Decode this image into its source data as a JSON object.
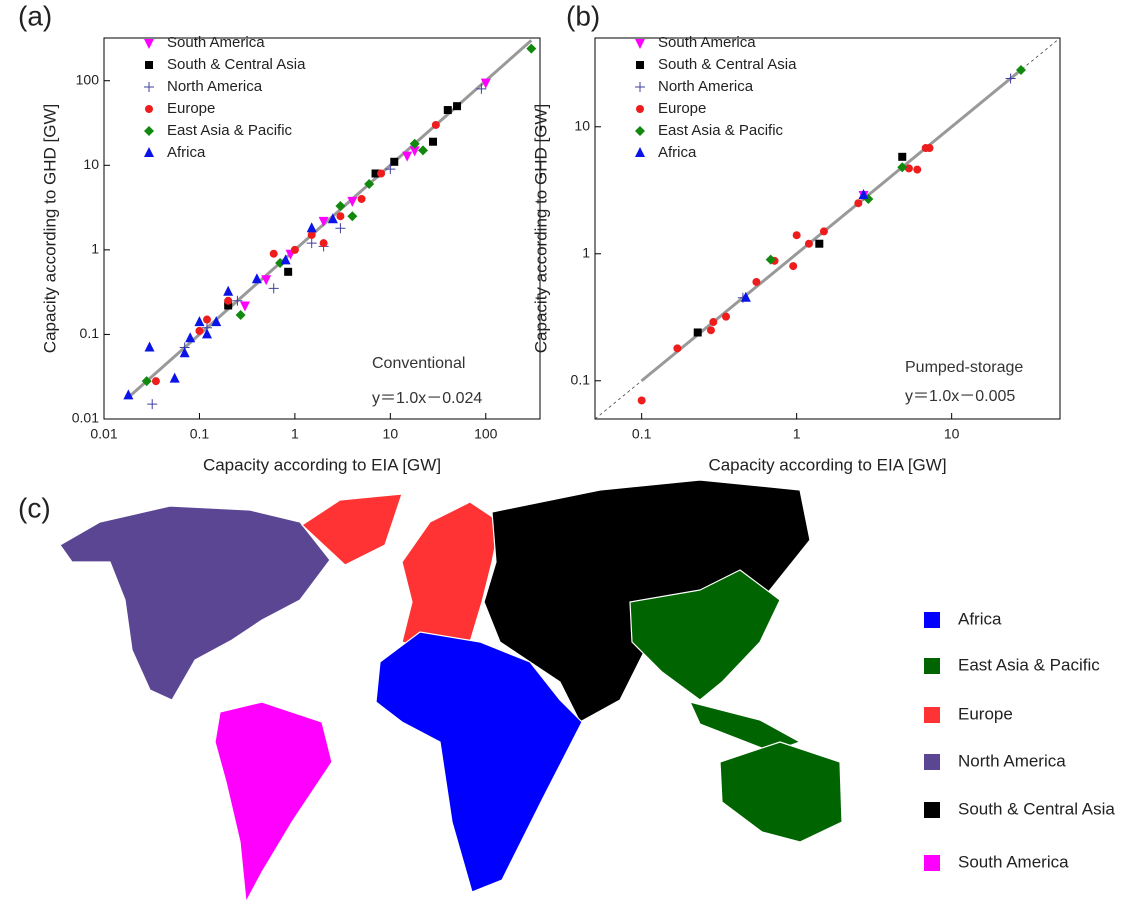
{
  "chart_data": [
    {
      "type": "scatter",
      "label": "(a)",
      "x_label": "Capacity according to EIA [GW]",
      "y_label": "Capacity according to GHD [GW]",
      "annotations": [
        "Conventional",
        "y＝1.0x－0.024"
      ],
      "log_x": true,
      "log_y": true,
      "fit_line": true,
      "diagonal": false,
      "xlim": [
        0.01,
        370
      ],
      "ylim": [
        0.01,
        320
      ],
      "xticks": [
        0.01,
        0.1,
        1,
        10,
        100
      ],
      "yticks": [
        0.01,
        0.1,
        1,
        10,
        100
      ],
      "series": [
        {
          "name": "South America",
          "color": "#ff00ff",
          "marker": "triangle-down",
          "x": [
            0.3,
            0.5,
            0.9,
            2,
            4,
            15,
            18,
            100
          ],
          "values": [
            0.22,
            0.45,
            0.9,
            2.2,
            3.8,
            13,
            15,
            95
          ]
        },
        {
          "name": "South & Central Asia",
          "color": "#000000",
          "marker": "square",
          "x": [
            0.2,
            0.85,
            7,
            11,
            28,
            40,
            50
          ],
          "values": [
            0.22,
            0.55,
            8,
            11,
            19,
            45,
            50
          ]
        },
        {
          "name": "North America",
          "color": "#4040a0",
          "marker": "plus",
          "x": [
            0.032,
            0.07,
            0.12,
            0.25,
            0.6,
            1.5,
            2,
            3,
            10,
            90
          ],
          "values": [
            0.015,
            0.07,
            0.12,
            0.25,
            0.35,
            1.2,
            1.1,
            1.8,
            9,
            80
          ]
        },
        {
          "name": "Europe",
          "color": "#ee1c1c",
          "marker": "circle",
          "x": [
            0.035,
            0.1,
            0.12,
            0.2,
            0.6,
            1,
            1.5,
            2,
            3,
            5,
            8,
            30
          ],
          "values": [
            0.028,
            0.11,
            0.15,
            0.25,
            0.9,
            1,
            1.5,
            1.2,
            2.5,
            4,
            8,
            30
          ]
        },
        {
          "name": "East Asia & Pacific",
          "color": "#11880e",
          "marker": "diamond",
          "x": [
            0.028,
            0.27,
            0.7,
            3,
            4,
            6,
            18,
            22,
            300
          ],
          "values": [
            0.028,
            0.17,
            0.7,
            3.3,
            2.5,
            6,
            18,
            15,
            240
          ]
        },
        {
          "name": "Africa",
          "color": "#0a14e6",
          "marker": "triangle-up",
          "x": [
            0.018,
            0.03,
            0.055,
            0.07,
            0.08,
            0.1,
            0.12,
            0.15,
            0.2,
            0.4,
            0.8,
            1.5,
            2.5
          ],
          "values": [
            0.019,
            0.07,
            0.03,
            0.06,
            0.09,
            0.14,
            0.1,
            0.14,
            0.32,
            0.45,
            0.75,
            1.8,
            2.3
          ]
        }
      ]
    },
    {
      "type": "scatter",
      "label": "(b)",
      "x_label": "Capacity according to EIA [GW]",
      "y_label": "Capacity according to GHD [GW]",
      "annotations": [
        "Pumped-storage",
        "y＝1.0x－0.005"
      ],
      "log_x": true,
      "log_y": true,
      "fit_line": true,
      "diagonal": true,
      "xlim": [
        0.05,
        50
      ],
      "ylim": [
        0.05,
        50
      ],
      "xticks": [
        0.1,
        1,
        10
      ],
      "yticks": [
        0.1,
        1,
        10
      ],
      "series": [
        {
          "name": "South America",
          "color": "#ff00ff",
          "marker": "triangle-down",
          "x": [
            2.7
          ],
          "values": [
            2.9
          ]
        },
        {
          "name": "South & Central Asia",
          "color": "#000000",
          "marker": "square",
          "x": [
            0.23,
            1.4,
            4.8
          ],
          "values": [
            0.24,
            1.2,
            5.8
          ]
        },
        {
          "name": "North America",
          "color": "#4040a0",
          "marker": "plus",
          "x": [
            0.45,
            24
          ],
          "values": [
            0.45,
            24
          ]
        },
        {
          "name": "Europe",
          "color": "#ee1c1c",
          "marker": "circle",
          "x": [
            0.1,
            0.17,
            0.28,
            0.29,
            0.35,
            0.55,
            0.72,
            0.95,
            1,
            1.2,
            1.5,
            2.5,
            5.3,
            6,
            6.8,
            7.2
          ],
          "values": [
            0.07,
            0.18,
            0.25,
            0.29,
            0.32,
            0.6,
            0.88,
            0.8,
            1.4,
            1.2,
            1.5,
            2.5,
            4.7,
            4.6,
            6.8,
            6.8
          ]
        },
        {
          "name": "East Asia & Pacific",
          "color": "#11880e",
          "marker": "diamond",
          "x": [
            0.68,
            2.9,
            4.8,
            28
          ],
          "values": [
            0.9,
            2.7,
            4.8,
            28
          ]
        },
        {
          "name": "Africa",
          "color": "#0a14e6",
          "marker": "triangle-up",
          "x": [
            0.47,
            2.7
          ],
          "values": [
            0.45,
            2.9
          ]
        }
      ]
    },
    {
      "type": "map",
      "label": "(c)",
      "categories": [
        "Africa",
        "East Asia & Pacific",
        "Europe",
        "North America",
        "South & Central Asia",
        "South America"
      ],
      "colors": [
        "#0000ff",
        "#006400",
        "#ff3333",
        "#5b4694",
        "#000000",
        "#ff00ff"
      ]
    }
  ]
}
